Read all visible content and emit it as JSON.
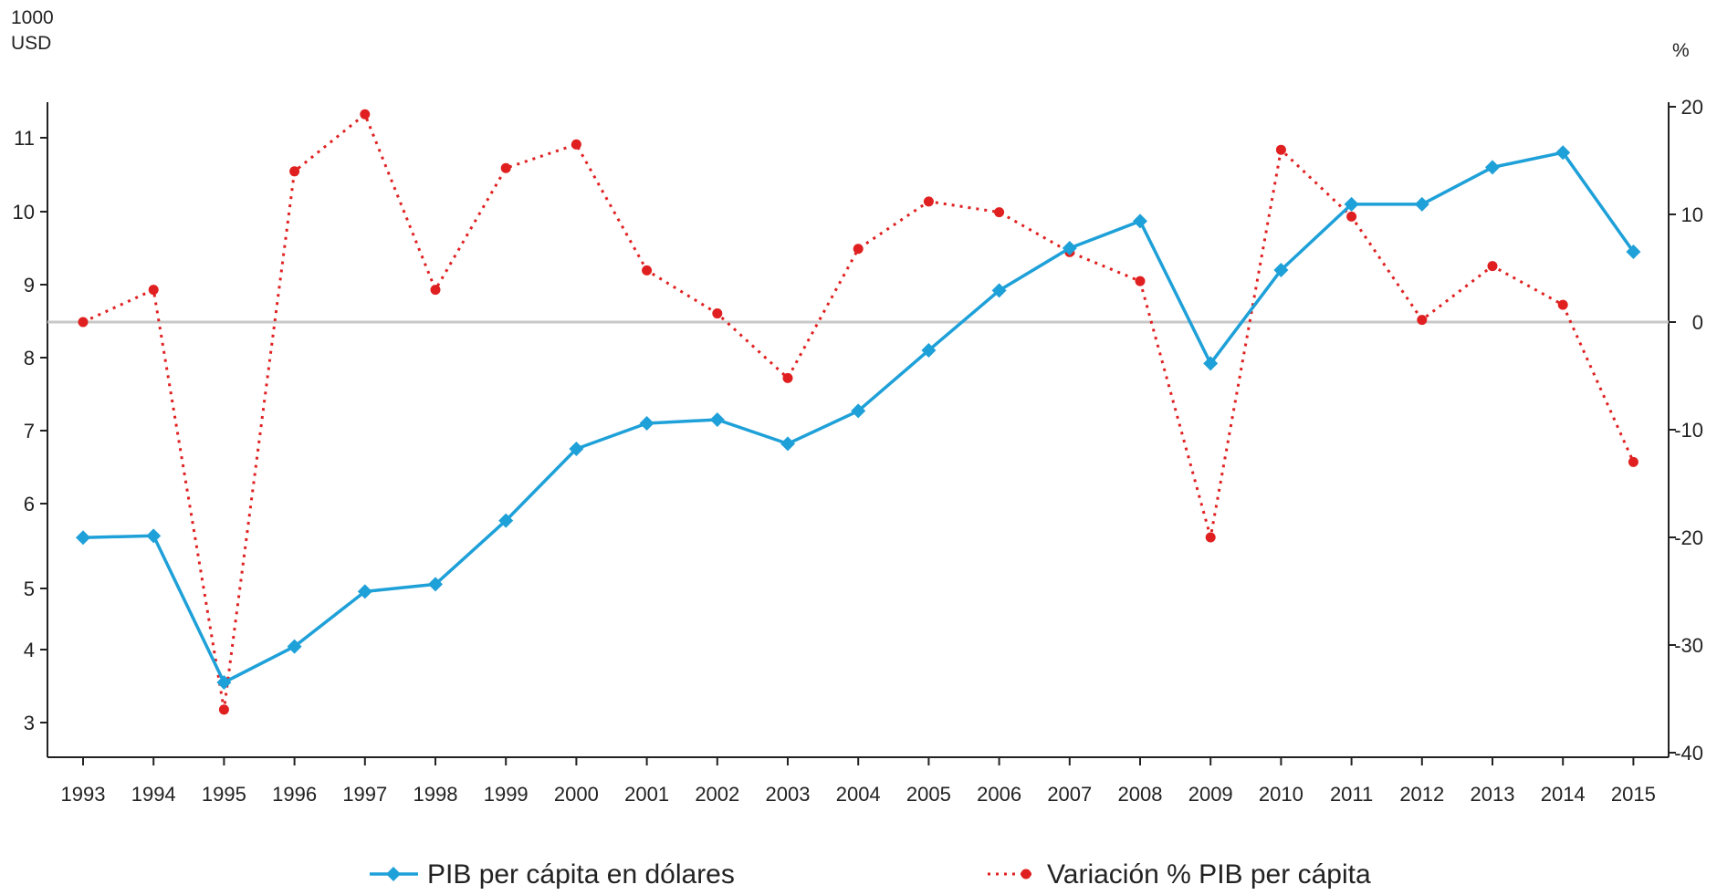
{
  "chart_data": {
    "type": "line",
    "categories": [
      "1993",
      "1994",
      "1995",
      "1996",
      "1997",
      "1998",
      "1999",
      "2000",
      "2001",
      "2002",
      "2003",
      "2004",
      "2005",
      "2006",
      "2007",
      "2008",
      "2009",
      "2010",
      "2011",
      "2012",
      "2013",
      "2014",
      "2015"
    ],
    "left_axis": {
      "unit_line1": "1000",
      "unit_line2": "USD",
      "ticks": [
        3,
        4,
        5,
        6,
        7,
        8,
        9,
        10,
        11
      ]
    },
    "right_axis": {
      "unit": "%",
      "ticks": [
        20,
        10,
        0,
        -10,
        -20,
        -30,
        -40
      ],
      "zero_line": true
    },
    "series": [
      {
        "name": "PIB per cápita en dólares",
        "axis": "left",
        "color": "#1ea0d8",
        "marker": "diamond",
        "line_style": "solid",
        "values": [
          5.6,
          5.62,
          3.55,
          4.05,
          4.95,
          5.05,
          5.8,
          6.75,
          7.1,
          7.15,
          6.82,
          7.27,
          8.1,
          8.92,
          9.5,
          9.87,
          7.92,
          9.2,
          10.1,
          10.1,
          10.6,
          10.8,
          9.45
        ]
      },
      {
        "name": "Variación % PIB per cápita",
        "axis": "right",
        "color": "#e02020",
        "marker": "circle",
        "line_style": "dotted",
        "values": [
          0,
          3,
          -36,
          14,
          19.3,
          3,
          14.3,
          16.5,
          4.8,
          0.8,
          -5.2,
          6.8,
          11.2,
          10.2,
          6.5,
          3.8,
          -20,
          16,
          9.8,
          0.2,
          5.2,
          1.6,
          -13
        ]
      }
    ]
  }
}
